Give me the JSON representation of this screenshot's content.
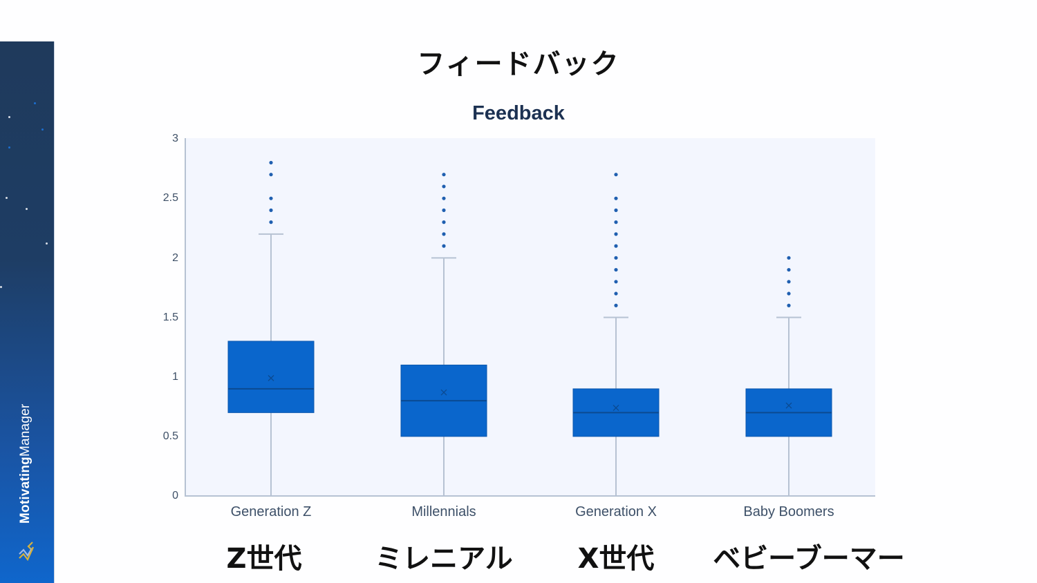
{
  "page": {
    "title_jp": "フィードバック",
    "brand": {
      "name_bold": "Motivating",
      "name_regular": "Manager"
    }
  },
  "colors": {
    "box_fill": "#0a66cc",
    "box_stroke": "#0b57ad",
    "whisker": "#b6c2d3",
    "outlier": "#1f5fb0",
    "plot_bg": "#f3f6fe",
    "title": "#1c3152"
  },
  "x_labels_jp": [
    "Z世代",
    "ミレニアル",
    "X世代",
    "ベビーブーマー"
  ],
  "chart_data": {
    "type": "box",
    "title": "Feedback",
    "xlabel": "",
    "ylabel": "",
    "ylim": [
      0,
      3
    ],
    "yticks": [
      "0",
      "0.5",
      "1",
      "1.5",
      "2",
      "2.5",
      "3"
    ],
    "grid": false,
    "legend": null,
    "categories": [
      "Generation Z",
      "Millennials",
      "Generation X",
      "Baby Boomers"
    ],
    "series": [
      {
        "name": "Generation Z",
        "min": 0,
        "q1": 0.7,
        "median": 0.9,
        "q3": 1.3,
        "max": 2.2,
        "mean": 0.99,
        "outliers": [
          2.3,
          2.4,
          2.5,
          2.7,
          2.8
        ]
      },
      {
        "name": "Millennials",
        "min": 0,
        "q1": 0.5,
        "median": 0.8,
        "q3": 1.1,
        "max": 2.0,
        "mean": 0.87,
        "outliers": [
          2.1,
          2.2,
          2.3,
          2.4,
          2.5,
          2.6,
          2.7
        ]
      },
      {
        "name": "Generation X",
        "min": 0,
        "q1": 0.5,
        "median": 0.7,
        "q3": 0.9,
        "max": 1.5,
        "mean": 0.74,
        "outliers": [
          1.6,
          1.7,
          1.8,
          1.9,
          2.0,
          2.1,
          2.2,
          2.3,
          2.4,
          2.5,
          2.7
        ]
      },
      {
        "name": "Baby Boomers",
        "min": 0,
        "q1": 0.5,
        "median": 0.7,
        "q3": 0.9,
        "max": 1.5,
        "mean": 0.76,
        "outliers": [
          1.6,
          1.7,
          1.8,
          1.9,
          2.0
        ]
      }
    ]
  }
}
